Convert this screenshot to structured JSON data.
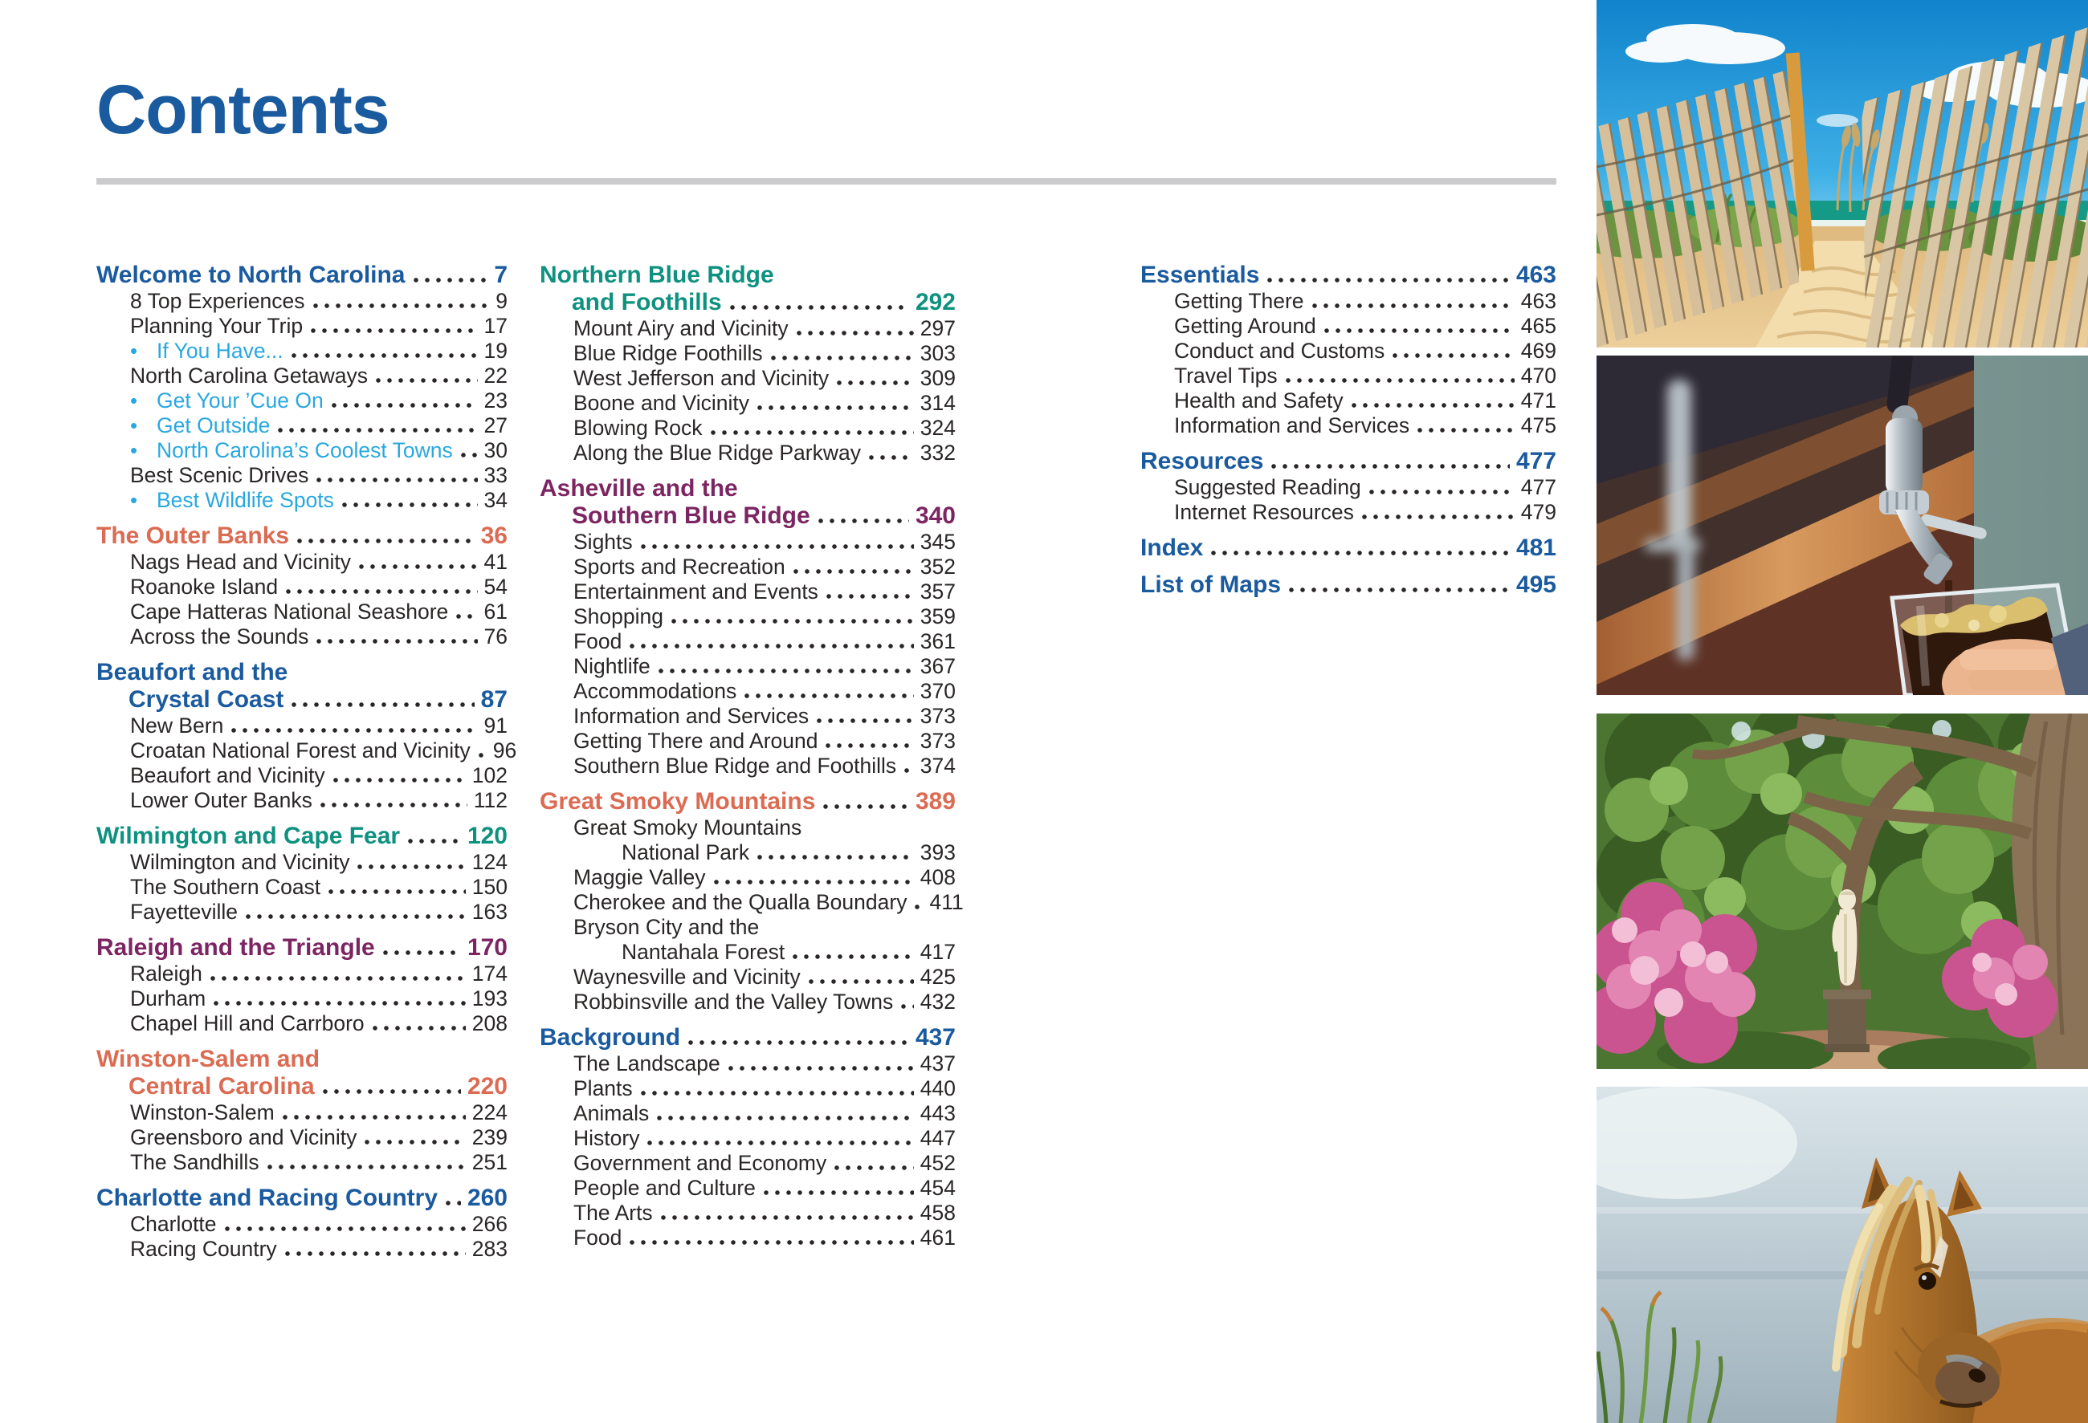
{
  "page_title": "Contents",
  "colors": {
    "blue": "#1a5a9e",
    "coral": "#db6b52",
    "teal": "#0f9180",
    "purple": "#7c2562",
    "link": "#29a8df",
    "text": "#2a2626",
    "rule": "#cbcbcd"
  },
  "columns": [
    [
      {
        "title_lines": [
          "Welcome to North Carolina"
        ],
        "color": "blue",
        "page": "7",
        "items": [
          {
            "label": "8 Top Experiences",
            "page": "9"
          },
          {
            "label": "Planning Your Trip",
            "page": "17"
          },
          {
            "label": "If You Have...",
            "page": "19",
            "bullet": true
          },
          {
            "label": "North Carolina Getaways",
            "page": "22"
          },
          {
            "label": "Get Your ’Cue On",
            "page": "23",
            "bullet": true
          },
          {
            "label": "Get Outside",
            "page": "27",
            "bullet": true
          },
          {
            "label": "North Carolina’s Coolest Towns",
            "page": "30",
            "bullet": true
          },
          {
            "label": "Best Scenic Drives",
            "page": "33"
          },
          {
            "label": "Best Wildlife Spots",
            "page": "34",
            "bullet": true
          }
        ]
      },
      {
        "title_lines": [
          "The Outer Banks"
        ],
        "color": "coral",
        "page": "36",
        "items": [
          {
            "label": "Nags Head and Vicinity",
            "page": "41"
          },
          {
            "label": "Roanoke Island",
            "page": "54"
          },
          {
            "label": "Cape Hatteras National Seashore",
            "page": "61"
          },
          {
            "label": "Across the Sounds",
            "page": "76"
          }
        ]
      },
      {
        "title_lines": [
          "Beaufort and the",
          "Crystal Coast"
        ],
        "color": "blue",
        "page": "87",
        "items": [
          {
            "label": "New Bern",
            "page": "91"
          },
          {
            "label": "Croatan National Forest and Vicinity",
            "page": "96"
          },
          {
            "label": "Beaufort and Vicinity",
            "page": "102"
          },
          {
            "label": "Lower Outer Banks",
            "page": "112"
          }
        ]
      },
      {
        "title_lines": [
          "Wilmington and Cape Fear"
        ],
        "color": "teal",
        "page": "120",
        "items": [
          {
            "label": "Wilmington and Vicinity",
            "page": "124"
          },
          {
            "label": "The Southern Coast",
            "page": "150"
          },
          {
            "label": "Fayetteville",
            "page": "163"
          }
        ]
      },
      {
        "title_lines": [
          "Raleigh and the Triangle"
        ],
        "color": "purple",
        "page": "170",
        "items": [
          {
            "label": "Raleigh",
            "page": "174"
          },
          {
            "label": "Durham",
            "page": "193"
          },
          {
            "label": "Chapel Hill and Carrboro",
            "page": "208"
          }
        ]
      },
      {
        "title_lines": [
          "Winston-Salem and",
          "Central Carolina"
        ],
        "color": "coral",
        "page": "220",
        "items": [
          {
            "label": "Winston-Salem",
            "page": "224"
          },
          {
            "label": "Greensboro and Vicinity",
            "page": "239"
          },
          {
            "label": "The Sandhills",
            "page": "251"
          }
        ]
      },
      {
        "title_lines": [
          "Charlotte and Racing Country"
        ],
        "color": "blue",
        "page": "260",
        "items": [
          {
            "label": "Charlotte",
            "page": "266"
          },
          {
            "label": "Racing Country",
            "page": "283"
          }
        ]
      }
    ],
    [
      {
        "title_lines": [
          "Northern Blue Ridge",
          "and Foothills"
        ],
        "color": "teal",
        "page": "292",
        "items": [
          {
            "label": "Mount Airy and Vicinity",
            "page": "297"
          },
          {
            "label": "Blue Ridge Foothills",
            "page": "303"
          },
          {
            "label": "West Jefferson and Vicinity",
            "page": "309"
          },
          {
            "label": "Boone and Vicinity",
            "page": "314"
          },
          {
            "label": "Blowing Rock",
            "page": "324"
          },
          {
            "label": "Along the Blue Ridge Parkway",
            "page": "332"
          }
        ]
      },
      {
        "title_lines": [
          "Asheville and the",
          "Southern Blue Ridge"
        ],
        "color": "purple",
        "page": "340",
        "items": [
          {
            "label": "Sights",
            "page": "345"
          },
          {
            "label": "Sports and Recreation",
            "page": "352"
          },
          {
            "label": "Entertainment and Events",
            "page": "357"
          },
          {
            "label": "Shopping",
            "page": "359"
          },
          {
            "label": "Food",
            "page": "361"
          },
          {
            "label": "Nightlife",
            "page": "367"
          },
          {
            "label": "Accommodations",
            "page": "370"
          },
          {
            "label": "Information and Services",
            "page": "373"
          },
          {
            "label": "Getting There and Around",
            "page": "373"
          },
          {
            "label": "Southern Blue Ridge and Foothills",
            "page": "374"
          }
        ]
      },
      {
        "title_lines": [
          "Great Smoky Mountains"
        ],
        "color": "coral",
        "page": "389",
        "items": [
          {
            "pre": "Great Smoky Mountains",
            "label": "National Park",
            "page": "393"
          },
          {
            "label": "Maggie Valley",
            "page": "408"
          },
          {
            "label": "Cherokee and the Qualla Boundary",
            "page": "411"
          },
          {
            "pre": "Bryson City and the",
            "label": "Nantahala Forest",
            "page": "417"
          },
          {
            "label": "Waynesville and Vicinity",
            "page": "425"
          },
          {
            "label": "Robbinsville and the Valley Towns",
            "page": "432"
          }
        ]
      },
      {
        "title_lines": [
          "Background"
        ],
        "color": "blue",
        "page": "437",
        "items": [
          {
            "label": "The Landscape",
            "page": "437"
          },
          {
            "label": "Plants",
            "page": "440"
          },
          {
            "label": "Animals",
            "page": "443"
          },
          {
            "label": "History",
            "page": "447"
          },
          {
            "label": "Government and Economy",
            "page": "452"
          },
          {
            "label": "People and Culture",
            "page": "454"
          },
          {
            "label": "The Arts",
            "page": "458"
          },
          {
            "label": "Food",
            "page": "461"
          }
        ]
      }
    ],
    [
      {
        "title_lines": [
          "Essentials"
        ],
        "color": "blue",
        "page": "463",
        "items": [
          {
            "label": "Getting There",
            "page": "463"
          },
          {
            "label": "Getting Around",
            "page": "465"
          },
          {
            "label": "Conduct and Customs",
            "page": "469"
          },
          {
            "label": "Travel Tips",
            "page": "470"
          },
          {
            "label": "Health and Safety",
            "page": "471"
          },
          {
            "label": "Information and Services",
            "page": "475"
          }
        ]
      },
      {
        "title_lines": [
          "Resources"
        ],
        "color": "blue",
        "page": "477",
        "items": [
          {
            "label": "Suggested Reading",
            "page": "477"
          },
          {
            "label": "Internet Resources",
            "page": "479"
          }
        ]
      },
      {
        "title_lines": [
          "Index"
        ],
        "color": "blue",
        "page": "481",
        "items": []
      },
      {
        "title_lines": [
          "List of Maps"
        ],
        "color": "blue",
        "page": "495",
        "items": []
      }
    ]
  ],
  "photos": [
    {
      "name": "beach-dune-path-photo"
    },
    {
      "name": "beer-tap-pour-photo"
    },
    {
      "name": "garden-statue-azaleas-photo"
    },
    {
      "name": "wild-pony-photo"
    }
  ]
}
